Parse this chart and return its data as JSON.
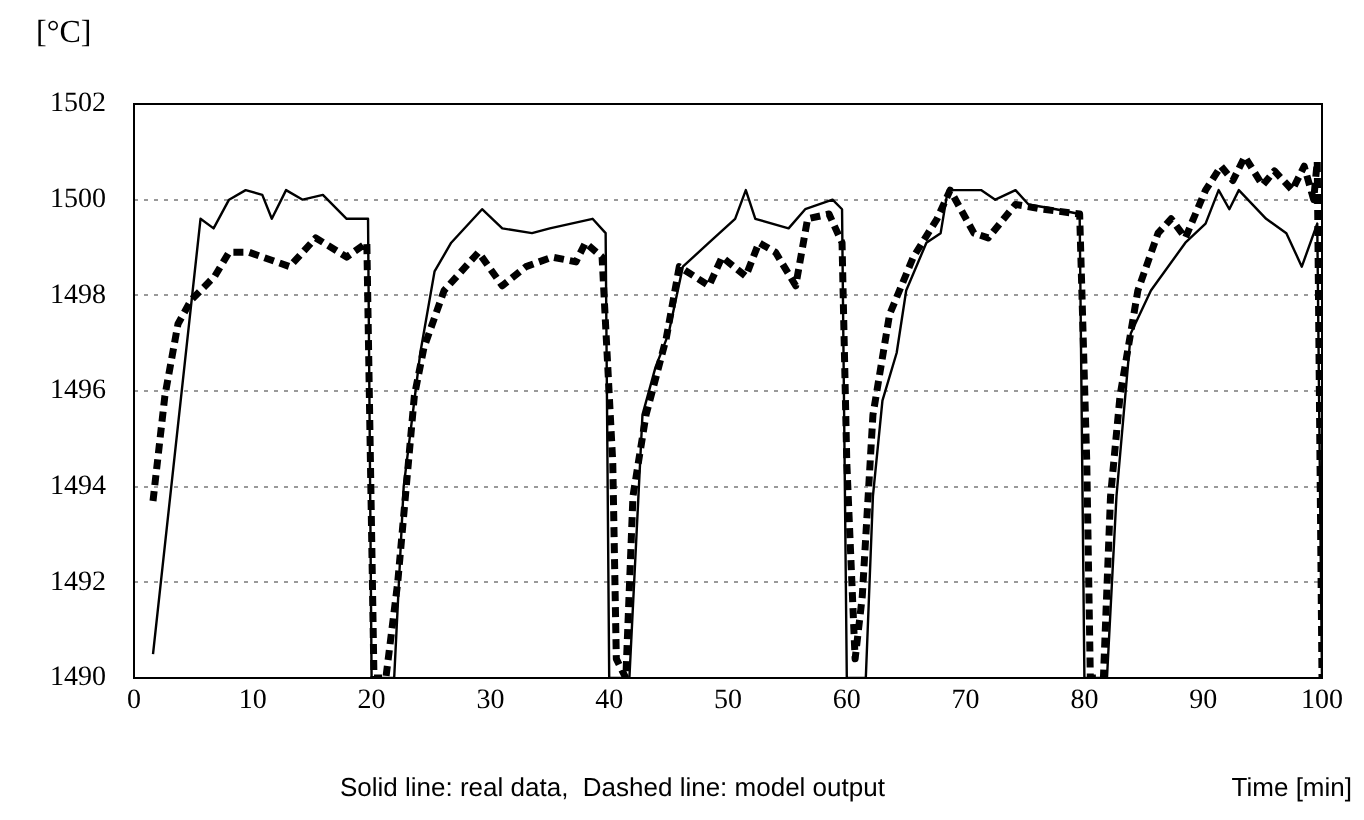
{
  "chart_data": {
    "type": "line",
    "ylabel": "[°C]",
    "xlabel": "Time [min]",
    "annotations": [
      "Solid line: real data,  Dashed line: model output"
    ],
    "xlim": [
      0,
      100
    ],
    "xticks": [
      0,
      10,
      20,
      30,
      40,
      50,
      60,
      70,
      80,
      90,
      100
    ],
    "ylim": [
      1490,
      1502
    ],
    "yticks": [
      1490,
      1492,
      1494,
      1496,
      1498,
      1500,
      1502
    ],
    "grid": "y",
    "legend": false,
    "marker": "none",
    "series": [
      {
        "color": "#000000",
        "line_style": "solid",
        "x": [
          1.6,
          5.6,
          6.7,
          8,
          9.4,
          10.8,
          11.6,
          12.8,
          14.2,
          15.9,
          17.9,
          19.7,
          20,
          21.9,
          22.7,
          24.1,
          25.3,
          26.7,
          29.3,
          31,
          33.5,
          35,
          38.6,
          39.7,
          40,
          41.7,
          42.8,
          43.9,
          45,
          46.2,
          48.4,
          50.6,
          51.5,
          52.3,
          55.1,
          56.5,
          58.8,
          59.6,
          60,
          61.6,
          62.2,
          63,
          64.2,
          65,
          66.7,
          67.9,
          68.5,
          71.3,
          72.5,
          74.2,
          75.3,
          77.6,
          79.6,
          80,
          81.9,
          82.7,
          83.9,
          85.6,
          88.5,
          90.2,
          91.3,
          92.2,
          93,
          95.3,
          97,
          98.3,
          99.6,
          100
        ],
        "values": [
          1490.5,
          1499.6,
          1499.4,
          1500,
          1500.2,
          1500.1,
          1499.6,
          1500.2,
          1500,
          1500.1,
          1499.6,
          1499.6,
          1490,
          1490,
          1494,
          1496.8,
          1498.5,
          1499.1,
          1499.8,
          1499.4,
          1499.3,
          1499.4,
          1499.6,
          1499.3,
          1490,
          1490,
          1495.5,
          1496.5,
          1497.2,
          1498.6,
          1499.1,
          1499.6,
          1500.2,
          1499.6,
          1499.4,
          1499.8,
          1500,
          1499.8,
          1490,
          1490,
          1493.8,
          1495.8,
          1496.8,
          1498.1,
          1499.1,
          1499.3,
          1500.2,
          1500.2,
          1500,
          1500.2,
          1499.9,
          1499.8,
          1499.7,
          1490,
          1490,
          1493.8,
          1497.2,
          1498.1,
          1499.1,
          1499.5,
          1500.2,
          1499.8,
          1500.2,
          1499.6,
          1499.3,
          1498.6,
          1499.5,
          1490
        ]
      },
      {
        "color": "#000000",
        "line_style": "dashed",
        "x": [
          1.6,
          2.6,
          3.7,
          4.8,
          6.8,
          8,
          9.7,
          13.1,
          15.3,
          17.9,
          19.6,
          20.2,
          21.2,
          22.2,
          23.6,
          24.4,
          26.1,
          29,
          31,
          33,
          35.2,
          37.2,
          38,
          39.4,
          40.3,
          40.6,
          41.4,
          42,
          43.1,
          44.8,
          45.9,
          48.4,
          49.5,
          51.5,
          52.6,
          54,
          55.7,
          56.7,
          58.5,
          59.6,
          60,
          60.7,
          61.3,
          62.2,
          63.6,
          65.6,
          67.6,
          68.7,
          70.7,
          71.9,
          74.2,
          76.5,
          79.6,
          80.2,
          80.5,
          81.6,
          82.2,
          83,
          84.5,
          86.2,
          87.3,
          88.5,
          90.2,
          91.5,
          92.5,
          93.5,
          95,
          96,
          97.5,
          98.5,
          99.3,
          99.6,
          100
        ],
        "values": [
          1493.7,
          1495.9,
          1497.4,
          1497.9,
          1498.4,
          1498.9,
          1498.9,
          1498.6,
          1499.2,
          1498.8,
          1499.1,
          1490,
          1490,
          1492,
          1495.9,
          1496.9,
          1498.1,
          1498.9,
          1498.2,
          1498.6,
          1498.8,
          1498.7,
          1499.1,
          1498.8,
          1494.5,
          1490.4,
          1490,
          1493.8,
          1495.5,
          1497.1,
          1498.6,
          1498.2,
          1498.8,
          1498.4,
          1499.1,
          1498.9,
          1498.2,
          1499.6,
          1499.7,
          1499.1,
          1494.5,
          1490.4,
          1491.7,
          1495.5,
          1497.6,
          1498.8,
          1499.6,
          1500.2,
          1499.3,
          1499.2,
          1499.9,
          1499.8,
          1499.7,
          1494.5,
          1490,
          1490,
          1493.8,
          1495.9,
          1498.1,
          1499.3,
          1499.6,
          1499.2,
          1500.2,
          1500.7,
          1500.4,
          1500.9,
          1500.3,
          1500.6,
          1500.2,
          1500.7,
          1500,
          1500.8,
          1490
        ]
      }
    ]
  }
}
